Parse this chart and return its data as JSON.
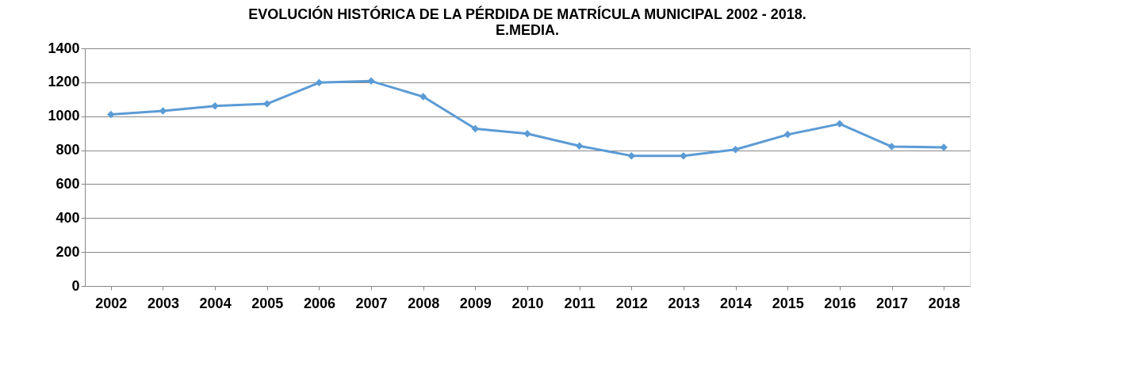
{
  "chart_data": {
    "type": "line",
    "title": "EVOLUCIÓN HISTÓRICA  DE LA PÉRDIDA DE MATRÍCULA MUNICIPAL 2002 - 2018.\nE.MEDIA.",
    "categories": [
      "2002",
      "2003",
      "2004",
      "2005",
      "2006",
      "2007",
      "2008",
      "2009",
      "2010",
      "2011",
      "2012",
      "2013",
      "2014",
      "2015",
      "2016",
      "2017",
      "2018"
    ],
    "series": [
      {
        "color": "#5b9bd5",
        "values": [
          1010,
          1031,
          1060,
          1073,
          1198,
          1207,
          1115,
          926,
          897,
          825,
          767,
          767,
          804,
          892,
          955,
          821,
          817
        ]
      }
    ],
    "ylim": [
      0,
      1400
    ],
    "yticks": [
      0,
      200,
      400,
      600,
      800,
      1000,
      1200,
      1400
    ],
    "grid": "y",
    "legend": false,
    "marker": "diamond",
    "line_style": "solid"
  }
}
